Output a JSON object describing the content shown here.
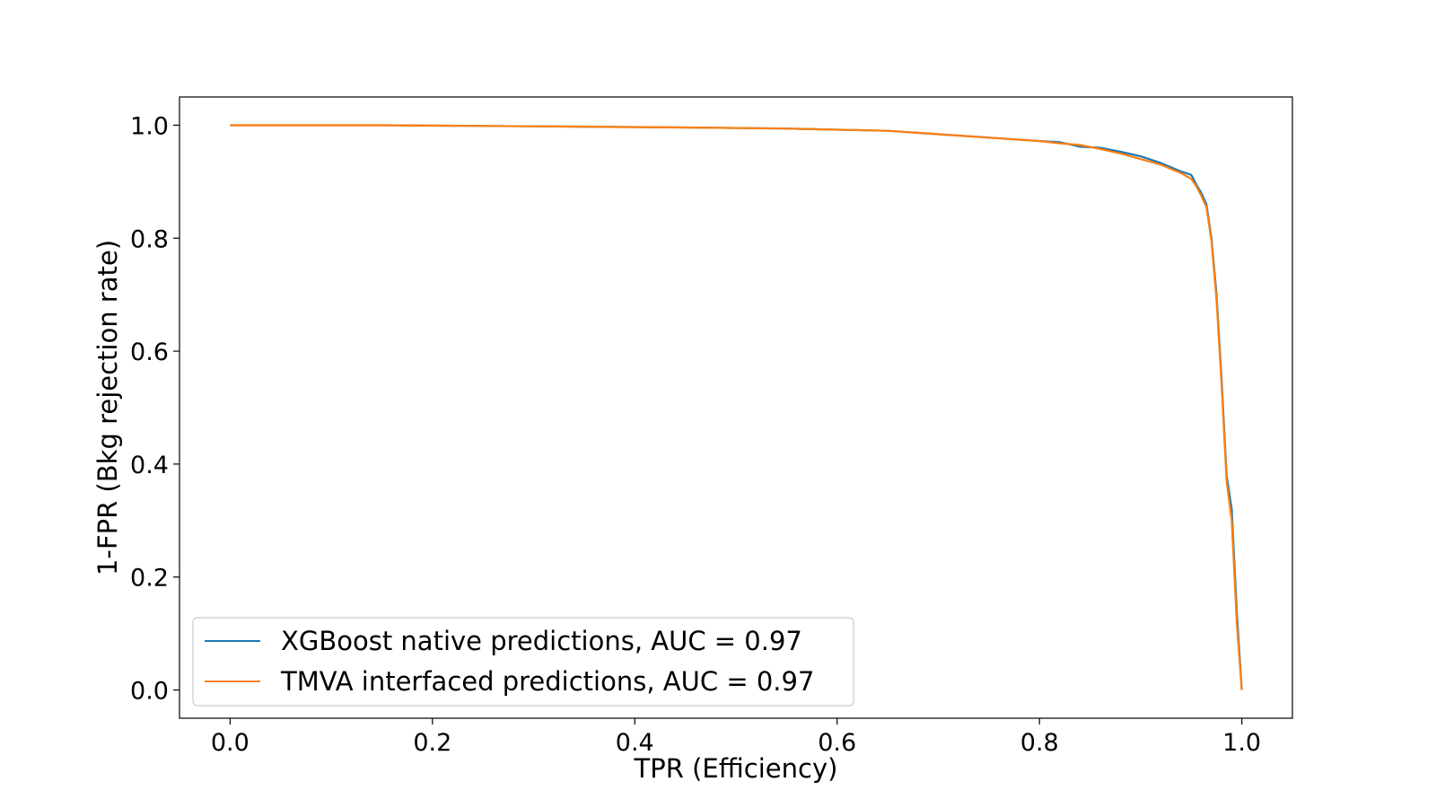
{
  "chart_data": {
    "type": "line",
    "title": "",
    "xlabel": "TPR (Efficiency)",
    "ylabel": "1-FPR (Bkg rejection rate)",
    "xlim": [
      -0.05,
      1.05
    ],
    "ylim": [
      -0.05,
      1.05
    ],
    "xticks": [
      {
        "value": 0.0,
        "label": "0.0"
      },
      {
        "value": 0.2,
        "label": "0.2"
      },
      {
        "value": 0.4,
        "label": "0.4"
      },
      {
        "value": 0.6,
        "label": "0.6"
      },
      {
        "value": 0.8,
        "label": "0.8"
      },
      {
        "value": 1.0,
        "label": "1.0"
      }
    ],
    "yticks": [
      {
        "value": 0.0,
        "label": "0.0"
      },
      {
        "value": 0.2,
        "label": "0.2"
      },
      {
        "value": 0.4,
        "label": "0.4"
      },
      {
        "value": 0.6,
        "label": "0.6"
      },
      {
        "value": 0.8,
        "label": "0.8"
      },
      {
        "value": 1.0,
        "label": "1.0"
      }
    ],
    "grid": false,
    "legend_position": "lower-left",
    "series": [
      {
        "name": "XGBoost native predictions, AUC = 0.97",
        "color": "#1f77b4",
        "x": [
          0.0,
          0.15,
          0.3,
          0.45,
          0.55,
          0.65,
          0.7,
          0.75,
          0.8,
          0.82,
          0.84,
          0.86,
          0.88,
          0.9,
          0.92,
          0.94,
          0.95,
          0.955,
          0.96,
          0.965,
          0.97,
          0.975,
          0.98,
          0.985,
          0.99,
          0.995,
          1.0
        ],
        "y": [
          1.0,
          1.0,
          0.998,
          0.996,
          0.994,
          0.99,
          0.984,
          0.978,
          0.972,
          0.97,
          0.962,
          0.96,
          0.953,
          0.945,
          0.933,
          0.918,
          0.912,
          0.895,
          0.88,
          0.86,
          0.8,
          0.7,
          0.55,
          0.38,
          0.32,
          0.14,
          0.0
        ]
      },
      {
        "name": "TMVA interfaced predictions, AUC = 0.97",
        "color": "#ff7f0e",
        "x": [
          0.0,
          0.15,
          0.3,
          0.45,
          0.55,
          0.65,
          0.7,
          0.75,
          0.8,
          0.82,
          0.84,
          0.86,
          0.88,
          0.9,
          0.92,
          0.94,
          0.95,
          0.955,
          0.96,
          0.965,
          0.97,
          0.975,
          0.98,
          0.985,
          0.99,
          0.995,
          1.0
        ],
        "y": [
          1.0,
          1.0,
          0.998,
          0.996,
          0.994,
          0.99,
          0.984,
          0.978,
          0.972,
          0.968,
          0.965,
          0.958,
          0.95,
          0.94,
          0.93,
          0.915,
          0.905,
          0.892,
          0.875,
          0.855,
          0.795,
          0.69,
          0.54,
          0.37,
          0.3,
          0.12,
          0.0
        ]
      }
    ]
  }
}
